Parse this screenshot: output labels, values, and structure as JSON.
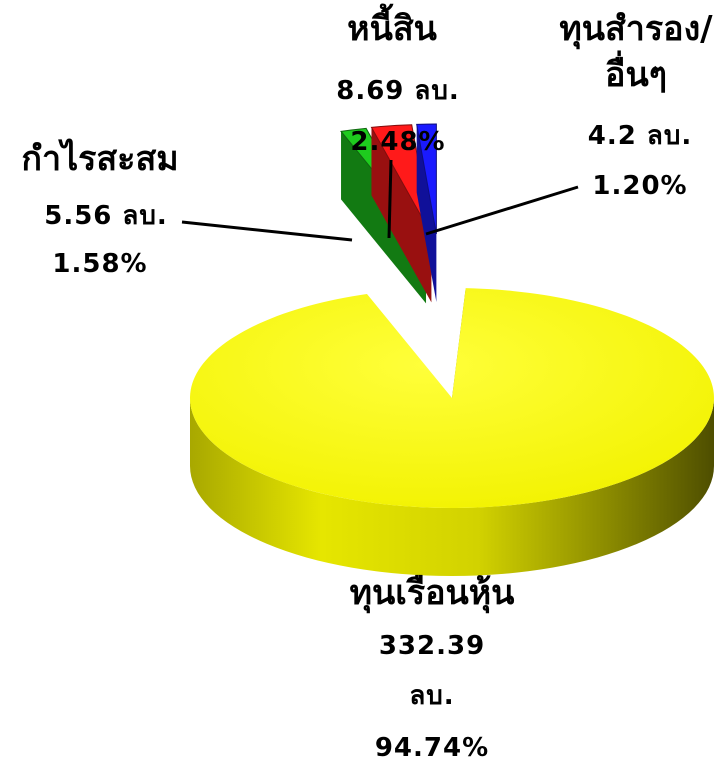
{
  "chart_data": {
    "type": "pie",
    "title": "",
    "slices": [
      {
        "name": "ทุนเรือนหุ้น",
        "value": 332.39,
        "value_text": "332.39",
        "unit_text": "ลบ.",
        "percent": 94.74,
        "percent_text": "94.74%",
        "color": "#f5f500"
      },
      {
        "name": "กำไรสะสม",
        "value": 5.56,
        "value_text": "5.56 ลบ.",
        "percent": 1.58,
        "percent_text": "1.58%",
        "color": "#1ecb1e"
      },
      {
        "name": "หนี้สิน",
        "value": 8.69,
        "value_text": "8.69 ลบ.",
        "percent": 2.48,
        "percent_text": "2.48%",
        "color": "#ff1a1a"
      },
      {
        "name": "ทุนสำรอง/อื่นๆ",
        "name_line1": "ทุนสำรอง/",
        "name_line2": "อื่นๆ",
        "value": 4.2,
        "value_text": "4.2 ลบ.",
        "percent": 1.2,
        "percent_text": "1.20%",
        "color": "#1a1aff"
      }
    ],
    "legend": "none",
    "style": "3d-exploded"
  }
}
